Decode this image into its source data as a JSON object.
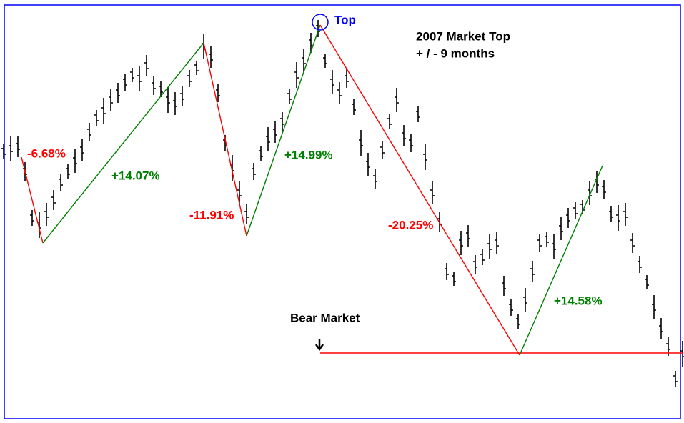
{
  "chart_data": {
    "type": "ohlc",
    "title": "2007 Market Top",
    "subtitle": "+ / - 9 months",
    "values": [
      373,
      377,
      380,
      345,
      280,
      270,
      285,
      305,
      330,
      345,
      360,
      375,
      400,
      420,
      430,
      445,
      455,
      470,
      480,
      475,
      493,
      465,
      460,
      445,
      440,
      450,
      475,
      490,
      520,
      505,
      455,
      385,
      350,
      315,
      285,
      345,
      370,
      390,
      400,
      415,
      450,
      480,
      500,
      525,
      545,
      500,
      470,
      455,
      475,
      435,
      385,
      355,
      335,
      375,
      415,
      445,
      395,
      385,
      425,
      365,
      315,
      275,
      205,
      195,
      245,
      255,
      215,
      225,
      240,
      245,
      185,
      155,
      135,
      165,
      205,
      245,
      250,
      240,
      265,
      280,
      290,
      295,
      315,
      330,
      320,
      285,
      280,
      285,
      245,
      215,
      190,
      155,
      125,
      100,
      55,
      90
    ],
    "color": "#000000",
    "xlim": [
      -0.5,
      95.2
    ],
    "ylim": [
      0,
      577
    ],
    "swings": {
      "x": [
        2.5,
        5.5,
        28,
        34,
        44.3,
        72.2,
        83.8
      ],
      "values": [
        365,
        245,
        525,
        255,
        550,
        88,
        353
      ],
      "legs": [
        {
          "value": -6.68,
          "label": "-6.68%",
          "color": "#ff0000"
        },
        {
          "value": 14.07,
          "label": "+14.07%",
          "color": "#008000"
        },
        {
          "value": -11.91,
          "label": "-11.91%",
          "color": "#ff0000"
        },
        {
          "value": 14.99,
          "label": "+14.99%",
          "color": "#008000"
        },
        {
          "value": -20.25,
          "label": "-20.25%",
          "color": "#ff0000"
        },
        {
          "value": 14.58,
          "label": "+14.58%",
          "color": "#008000"
        }
      ]
    },
    "top_marker": {
      "label": "Top",
      "color": "#0000ff"
    },
    "bear_line": {
      "label": "Bear Market",
      "value": 91,
      "x": [
        44.3,
        95
      ],
      "color": "#ff0000"
    },
    "frame_color": "#0000ff"
  }
}
